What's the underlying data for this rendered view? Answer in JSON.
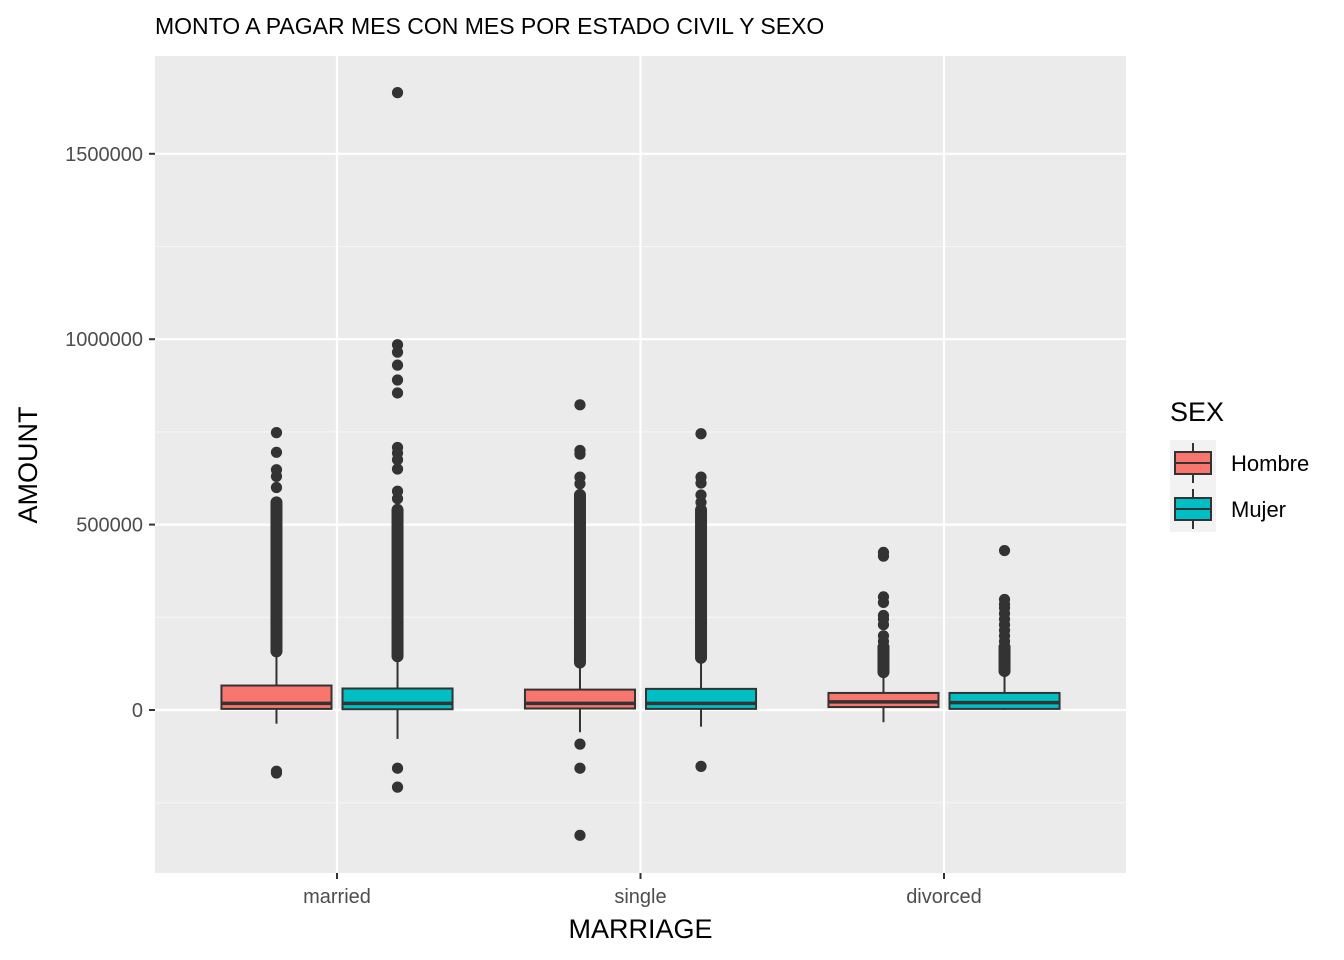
{
  "chart_data": {
    "type": "boxplot",
    "title": "MONTO A PAGAR MES CON MES POR ESTADO CIVIL Y SEXO",
    "xlabel": "MARRIAGE",
    "ylabel": "AMOUNT",
    "categories": [
      "married",
      "single",
      "divorced"
    ],
    "ylim": [
      -440000,
      1760000
    ],
    "yticks": [
      0,
      500000,
      1000000,
      1500000
    ],
    "ytick_labels": [
      "0",
      "500000",
      "1000000",
      "1500000"
    ],
    "grid": true,
    "legend": {
      "title": "SEX",
      "position": "right",
      "entries": [
        {
          "name": "Hombre",
          "color": "#F8766D"
        },
        {
          "name": "Mujer",
          "color": "#00BFC4"
        }
      ]
    },
    "series": [
      {
        "name": "Hombre",
        "color": "#F8766D",
        "boxes": [
          {
            "category": "married",
            "whisker_low": -37000,
            "q1": 3000,
            "median": 18000,
            "q3": 66000,
            "whisker_high": 155000,
            "outliers_low": [
              -165000,
              -170000
            ],
            "outlier_band": [
              158000,
              560000
            ],
            "outliers_high": [
              600000,
              630000,
              648000,
              695000,
              748000
            ]
          },
          {
            "category": "single",
            "whisker_low": -60000,
            "q1": 4000,
            "median": 18000,
            "q3": 55000,
            "whisker_high": 125000,
            "outliers_low": [
              -92000,
              -157000,
              -338000
            ],
            "outlier_band": [
              128000,
              580000
            ],
            "outliers_high": [
              610000,
              628000,
              690000,
              700000,
              823000
            ]
          },
          {
            "category": "divorced",
            "whisker_low": -33000,
            "q1": 8000,
            "median": 22000,
            "q3": 46000,
            "whisker_high": 98000,
            "outliers_low": [],
            "outlier_band": [
              102000,
              170000
            ],
            "outliers_high": [
              185000,
              200000,
              230000,
              245000,
              255000,
              290000,
              305000,
              415000,
              425000
            ]
          }
        ]
      },
      {
        "name": "Mujer",
        "color": "#00BFC4",
        "boxes": [
          {
            "category": "married",
            "whisker_low": -78000,
            "q1": 2000,
            "median": 18000,
            "q3": 58000,
            "whisker_high": 142000,
            "outliers_low": [
              -157000,
              -208000
            ],
            "outlier_band": [
              145000,
              540000
            ],
            "outliers_high": [
              570000,
              590000,
              650000,
              675000,
              693000,
              708000,
              855000,
              890000,
              930000,
              965000,
              985000,
              1665000
            ]
          },
          {
            "category": "single",
            "whisker_low": -45000,
            "q1": 3000,
            "median": 18000,
            "q3": 57000,
            "whisker_high": 138000,
            "outliers_low": [
              -152000
            ],
            "outlier_band": [
              141000,
              540000
            ],
            "outliers_high": [
              560000,
              580000,
              612000,
              628000,
              745000
            ]
          },
          {
            "category": "divorced",
            "whisker_low": 0,
            "q1": 3000,
            "median": 20000,
            "q3": 46000,
            "whisker_high": 100000,
            "outliers_low": [],
            "outlier_band": [
              105000,
              170000
            ],
            "outliers_high": [
              185000,
              200000,
              215000,
              230000,
              245000,
              260000,
              275000,
              285000,
              298000,
              430000
            ]
          }
        ]
      }
    ]
  }
}
